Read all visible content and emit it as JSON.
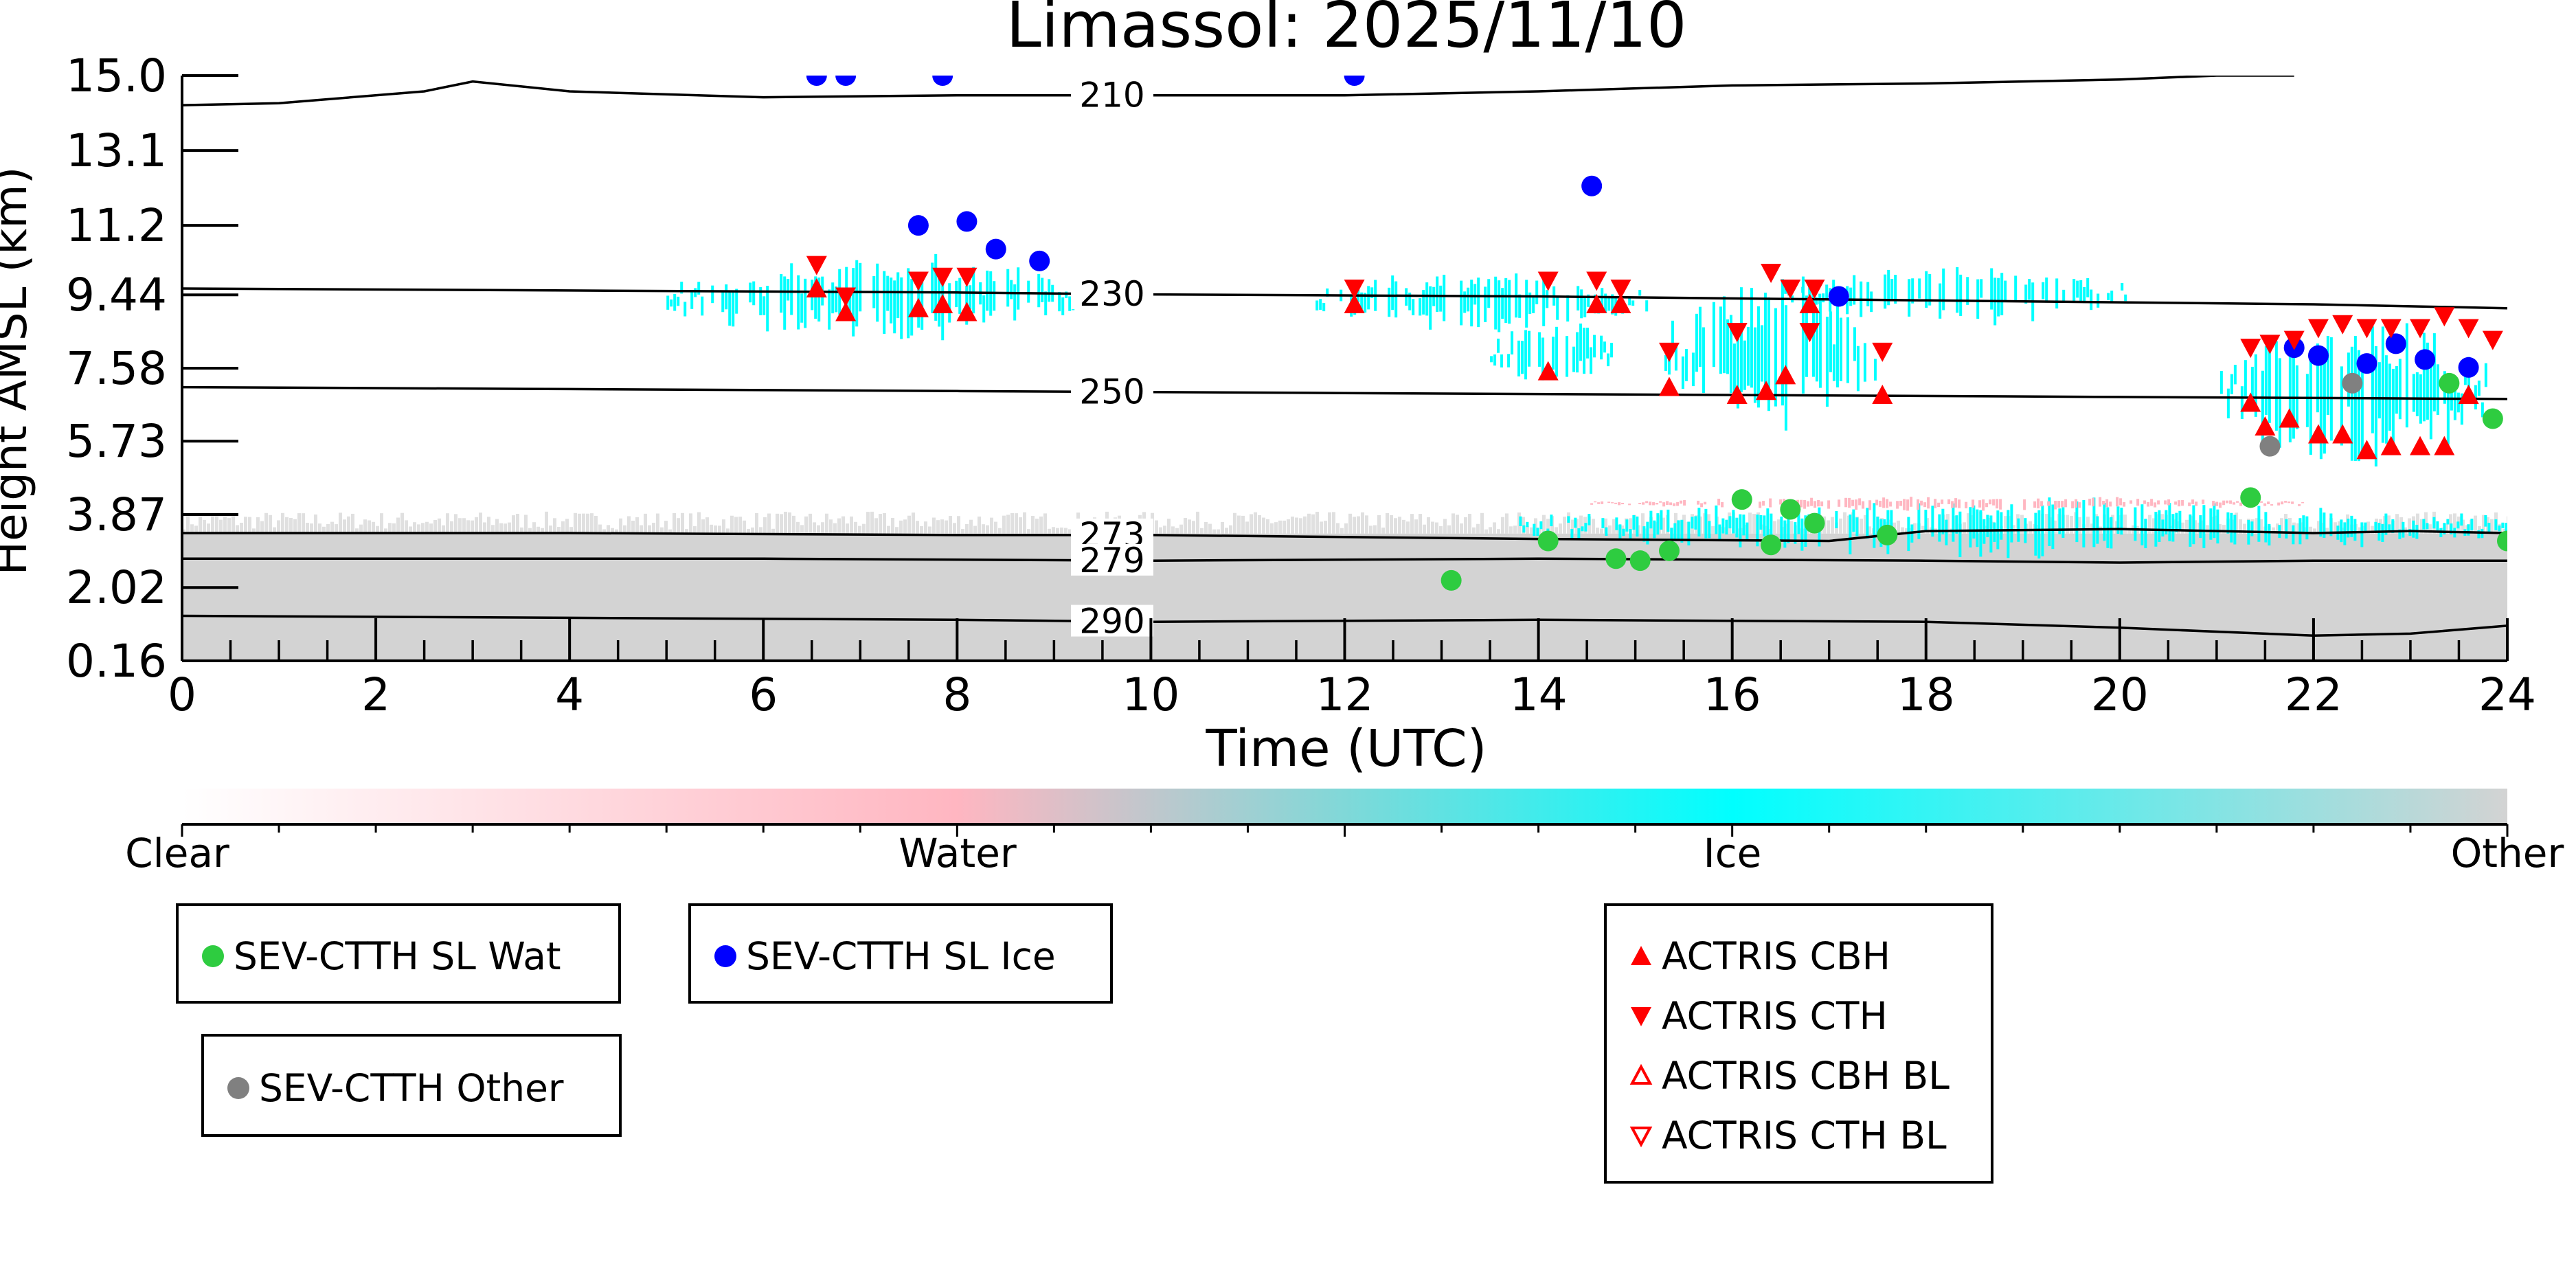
{
  "chart_data": {
    "type": "cloud-profile",
    "title": "Limassol: 2025/11/10",
    "xlabel": "Time (UTC)",
    "ylabel": "Height AMSL (km)",
    "xlim": [
      0,
      24
    ],
    "xticks": [
      "0",
      "2",
      "4",
      "6",
      "8",
      "10",
      "12",
      "14",
      "16",
      "18",
      "20",
      "22",
      "24"
    ],
    "ylim": [
      0.16,
      15.0
    ],
    "yticks": [
      "0.16",
      "2.02",
      "3.87",
      "5.73",
      "7.58",
      "9.44",
      "11.2",
      "13.1",
      "15.0"
    ],
    "ytick_values": [
      0.16,
      2.02,
      3.87,
      5.73,
      7.58,
      9.44,
      11.2,
      13.1,
      15.0
    ],
    "isotherms": [
      {
        "label": "210",
        "label_x": 9.6,
        "points": [
          [
            0,
            14.25
          ],
          [
            1,
            14.3
          ],
          [
            2.5,
            14.6
          ],
          [
            3,
            14.85
          ],
          [
            4,
            14.6
          ],
          [
            6,
            14.45
          ],
          [
            8,
            14.5
          ],
          [
            9.5,
            14.5
          ],
          [
            12,
            14.5
          ],
          [
            14,
            14.6
          ],
          [
            16,
            14.75
          ],
          [
            18,
            14.8
          ],
          [
            20,
            14.9
          ],
          [
            21,
            15.0
          ],
          [
            21.8,
            15.0
          ]
        ]
      },
      {
        "label": "230",
        "label_x": 9.6,
        "points": [
          [
            0,
            9.6
          ],
          [
            4,
            9.55
          ],
          [
            8,
            9.5
          ],
          [
            10,
            9.45
          ],
          [
            14,
            9.4
          ],
          [
            18,
            9.3
          ],
          [
            20,
            9.25
          ],
          [
            22,
            9.2
          ],
          [
            24,
            9.1
          ]
        ]
      },
      {
        "label": "250",
        "label_x": 9.6,
        "points": [
          [
            0,
            7.1
          ],
          [
            4,
            7.05
          ],
          [
            8,
            7.0
          ],
          [
            12,
            6.95
          ],
          [
            16,
            6.9
          ],
          [
            20,
            6.85
          ],
          [
            24,
            6.8
          ]
        ]
      },
      {
        "label": "273",
        "label_x": 9.6,
        "points": [
          [
            0,
            3.4
          ],
          [
            4,
            3.4
          ],
          [
            8,
            3.35
          ],
          [
            10,
            3.35
          ],
          [
            14,
            3.25
          ],
          [
            17,
            3.2
          ],
          [
            18,
            3.45
          ],
          [
            20,
            3.5
          ],
          [
            22,
            3.4
          ],
          [
            23,
            3.45
          ],
          [
            24,
            3.4
          ]
        ]
      },
      {
        "label": "279",
        "label_x": 9.6,
        "points": [
          [
            0,
            2.75
          ],
          [
            6,
            2.75
          ],
          [
            10,
            2.7
          ],
          [
            14,
            2.75
          ],
          [
            18,
            2.7
          ],
          [
            20,
            2.65
          ],
          [
            22,
            2.7
          ],
          [
            24,
            2.7
          ]
        ]
      },
      {
        "label": "290",
        "label_x": 9.6,
        "points": [
          [
            0,
            1.3
          ],
          [
            4,
            1.25
          ],
          [
            8,
            1.2
          ],
          [
            10,
            1.15
          ],
          [
            14,
            1.2
          ],
          [
            18,
            1.15
          ],
          [
            20,
            1.0
          ],
          [
            22,
            0.8
          ],
          [
            23,
            0.85
          ],
          [
            24,
            1.05
          ]
        ]
      }
    ],
    "cloud_regions": [
      {
        "class": "Other",
        "t0": 0.0,
        "t1": 24.0,
        "z0": 0.16,
        "z1": 3.7
      },
      {
        "class": "Ice",
        "t0": 5.0,
        "t1": 9.4,
        "z0": 8.4,
        "z1": 10.3
      },
      {
        "class": "Ice",
        "t0": 11.7,
        "t1": 15.2,
        "z0": 8.6,
        "z1": 10.0
      },
      {
        "class": "Ice",
        "t0": 13.5,
        "t1": 14.8,
        "z0": 7.2,
        "z1": 8.8
      },
      {
        "class": "Ice",
        "t0": 15.3,
        "t1": 17.6,
        "z0": 6.3,
        "z1": 9.6
      },
      {
        "class": "Ice",
        "t0": 16.5,
        "t1": 20.1,
        "z0": 8.8,
        "z1": 10.1
      },
      {
        "class": "Ice",
        "t0": 21.0,
        "t1": 23.8,
        "z0": 5.3,
        "z1": 8.7
      },
      {
        "class": "Ice",
        "t0": 13.8,
        "t1": 24.0,
        "z0": 2.9,
        "z1": 4.2
      },
      {
        "class": "Water",
        "t0": 14.5,
        "t1": 22.0,
        "z0": 4.0,
        "z1": 4.3
      }
    ],
    "series": [
      {
        "name": "SEV-CTTH SL Wat",
        "marker": "circle",
        "color": "#2ecc40",
        "points": [
          [
            13.1,
            2.2
          ],
          [
            14.1,
            3.2
          ],
          [
            14.8,
            2.75
          ],
          [
            15.05,
            2.7
          ],
          [
            15.35,
            2.95
          ],
          [
            16.1,
            4.25
          ],
          [
            16.4,
            3.1
          ],
          [
            16.6,
            4.0
          ],
          [
            16.85,
            3.65
          ],
          [
            17.6,
            3.35
          ],
          [
            21.35,
            4.3
          ],
          [
            23.4,
            7.2
          ],
          [
            23.85,
            6.3
          ],
          [
            24.0,
            3.2
          ]
        ]
      },
      {
        "name": "SEV-CTTH SL Ice",
        "marker": "circle",
        "color": "#0000ff",
        "points": [
          [
            6.55,
            15.0
          ],
          [
            6.85,
            15.0
          ],
          [
            7.85,
            15.0
          ],
          [
            12.1,
            15.0
          ],
          [
            7.6,
            11.2
          ],
          [
            8.1,
            11.3
          ],
          [
            8.4,
            10.6
          ],
          [
            8.85,
            10.3
          ],
          [
            14.55,
            12.2
          ],
          [
            17.1,
            9.4
          ],
          [
            21.8,
            8.1
          ],
          [
            22.05,
            7.9
          ],
          [
            22.55,
            7.7
          ],
          [
            22.85,
            8.2
          ],
          [
            23.15,
            7.8
          ],
          [
            23.6,
            7.6
          ]
        ]
      },
      {
        "name": "SEV-CTTH Other",
        "marker": "circle",
        "color": "#808080",
        "points": [
          [
            21.55,
            5.6
          ],
          [
            22.4,
            7.2
          ]
        ]
      },
      {
        "name": "ACTRIS CBH",
        "marker": "triangle-up",
        "color": "#ff0000",
        "points": [
          [
            6.55,
            9.6
          ],
          [
            6.85,
            9.0
          ],
          [
            7.6,
            9.1
          ],
          [
            7.85,
            9.2
          ],
          [
            8.1,
            9.0
          ],
          [
            12.1,
            9.2
          ],
          [
            14.1,
            7.5
          ],
          [
            14.6,
            9.2
          ],
          [
            14.85,
            9.2
          ],
          [
            15.35,
            7.1
          ],
          [
            16.05,
            6.9
          ],
          [
            16.35,
            7.0
          ],
          [
            16.55,
            7.4
          ],
          [
            16.8,
            9.2
          ],
          [
            17.55,
            6.9
          ],
          [
            21.35,
            6.7
          ],
          [
            21.5,
            6.1
          ],
          [
            21.75,
            6.3
          ],
          [
            22.05,
            5.9
          ],
          [
            22.3,
            5.9
          ],
          [
            22.55,
            5.5
          ],
          [
            22.8,
            5.6
          ],
          [
            23.1,
            5.6
          ],
          [
            23.35,
            5.6
          ],
          [
            23.6,
            6.9
          ]
        ]
      },
      {
        "name": "ACTRIS CTH",
        "marker": "triangle-down",
        "color": "#ff0000",
        "points": [
          [
            6.55,
            10.2
          ],
          [
            6.85,
            9.4
          ],
          [
            7.6,
            9.8
          ],
          [
            7.85,
            9.9
          ],
          [
            8.1,
            9.9
          ],
          [
            12.1,
            9.6
          ],
          [
            14.1,
            9.8
          ],
          [
            14.6,
            9.8
          ],
          [
            14.85,
            9.6
          ],
          [
            15.35,
            8.0
          ],
          [
            16.05,
            8.5
          ],
          [
            16.4,
            10.0
          ],
          [
            16.6,
            9.6
          ],
          [
            16.85,
            9.6
          ],
          [
            16.8,
            8.5
          ],
          [
            17.55,
            8.0
          ],
          [
            21.35,
            8.1
          ],
          [
            21.55,
            8.2
          ],
          [
            21.8,
            8.3
          ],
          [
            22.05,
            8.6
          ],
          [
            22.3,
            8.7
          ],
          [
            22.55,
            8.6
          ],
          [
            22.8,
            8.6
          ],
          [
            23.1,
            8.6
          ],
          [
            23.35,
            8.9
          ],
          [
            23.6,
            8.6
          ],
          [
            23.85,
            8.3
          ]
        ]
      },
      {
        "name": "ACTRIS CBH BL",
        "marker": "triangle-up-open",
        "color": "#ff0000",
        "points": []
      },
      {
        "name": "ACTRIS CTH BL",
        "marker": "triangle-down-open",
        "color": "#ff0000",
        "points": []
      }
    ],
    "colorbar": {
      "labels": [
        "Clear",
        "Water",
        "Ice",
        "Other"
      ],
      "colors": [
        "#ffffff",
        "#ffb6c1",
        "#00ffff",
        "#d3d3d3"
      ]
    }
  },
  "legends": {
    "sev_wat": "SEV-CTTH SL Wat",
    "sev_ice": "SEV-CTTH SL Ice",
    "sev_other": "SEV-CTTH Other",
    "actris_cbh": "ACTRIS CBH",
    "actris_cth": "ACTRIS CTH",
    "actris_cbh_bl": "ACTRIS CBH BL",
    "actris_cth_bl": "ACTRIS CTH BL"
  }
}
